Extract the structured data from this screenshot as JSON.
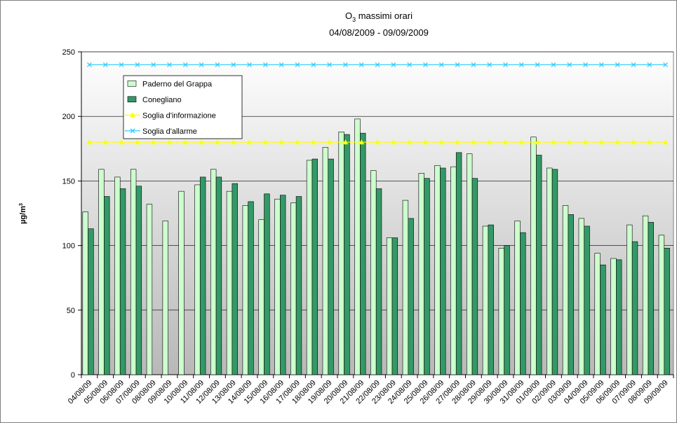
{
  "chart_data": {
    "type": "bar",
    "title": {
      "text": "O",
      "subscript": "3",
      "rest": " massimi orari"
    },
    "subtitle": "04/08/2009 - 09/09/2009",
    "y_label": {
      "text": "µg/m",
      "superscript": "3"
    },
    "categories": [
      "04/08/09",
      "05/08/09",
      "06/08/09",
      "07/08/09",
      "08/08/09",
      "09/08/09",
      "10/08/09",
      "11/08/09",
      "12/08/09",
      "13/08/09",
      "14/08/09",
      "15/08/09",
      "16/08/09",
      "17/08/09",
      "18/08/09",
      "19/08/09",
      "20/08/09",
      "21/08/09",
      "22/08/09",
      "23/08/09",
      "24/08/09",
      "25/08/09",
      "26/08/09",
      "27/08/09",
      "28/08/09",
      "29/08/09",
      "30/08/09",
      "31/08/09",
      "01/09/09",
      "02/09/09",
      "03/09/09",
      "04/09/09",
      "05/09/09",
      "06/09/09",
      "07/09/09",
      "08/09/09",
      "09/09/09"
    ],
    "series": [
      {
        "name": "Paderno del Grappa",
        "kind": "bar",
        "color": "#ccffcc",
        "values": [
          126,
          159,
          153,
          159,
          132,
          119,
          142,
          147,
          159,
          142,
          131,
          120,
          136,
          133,
          166,
          176,
          188,
          198,
          158,
          106,
          135,
          156,
          162,
          161,
          171,
          115,
          98,
          119,
          184,
          160,
          131,
          121,
          94,
          90,
          116,
          123,
          108
        ]
      },
      {
        "name": "Conegliano",
        "kind": "bar",
        "color": "#339966",
        "values": [
          113,
          138,
          144,
          146,
          null,
          null,
          null,
          153,
          153,
          148,
          134,
          140,
          139,
          138,
          167,
          167,
          186,
          187,
          144,
          106,
          121,
          152,
          160,
          172,
          152,
          116,
          100,
          110,
          170,
          159,
          124,
          115,
          85,
          89,
          103,
          118,
          98
        ]
      },
      {
        "name": "Soglia d'informazione",
        "kind": "line",
        "marker": "triangle",
        "color": "#ffff00",
        "values": [
          180,
          180,
          180,
          180,
          180,
          180,
          180,
          180,
          180,
          180,
          180,
          180,
          180,
          180,
          180,
          180,
          180,
          180,
          180,
          180,
          180,
          180,
          180,
          180,
          180,
          180,
          180,
          180,
          180,
          180,
          180,
          180,
          180,
          180,
          180,
          180,
          180
        ]
      },
      {
        "name": "Soglia d'allarme",
        "kind": "line",
        "marker": "x",
        "color": "#33ccff",
        "values": [
          240,
          240,
          240,
          240,
          240,
          240,
          240,
          240,
          240,
          240,
          240,
          240,
          240,
          240,
          240,
          240,
          240,
          240,
          240,
          240,
          240,
          240,
          240,
          240,
          240,
          240,
          240,
          240,
          240,
          240,
          240,
          240,
          240,
          240,
          240,
          240,
          240
        ]
      }
    ],
    "ylim": [
      0,
      250
    ],
    "yticks": [
      0,
      50,
      100,
      150,
      200,
      250
    ],
    "grid": true,
    "legend": "top-left"
  }
}
